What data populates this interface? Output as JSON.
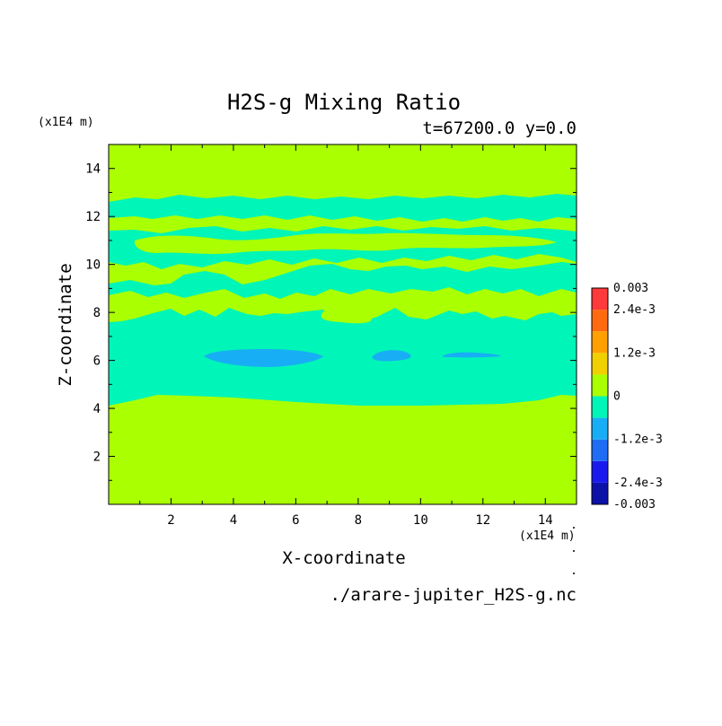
{
  "chart_data": {
    "type": "heatmap",
    "title": "H2S-g Mixing Ratio",
    "subtitle": "t=67200.0 y=0.0",
    "xlabel": "X-coordinate",
    "ylabel": "Z-coordinate",
    "x_unit": "(x1E4 m)",
    "y_unit": "(x1E4 m)",
    "xlim": [
      0,
      15
    ],
    "ylim": [
      0,
      15
    ],
    "x_ticks": [
      2,
      4,
      6,
      8,
      10,
      12,
      14
    ],
    "y_ticks": [
      2,
      4,
      6,
      8,
      10,
      12,
      14
    ],
    "x_tick_labels": [
      "2",
      "4",
      "6",
      "8",
      "10",
      "12",
      "14"
    ],
    "y_tick_labels": [
      "2",
      "4",
      "6",
      "8",
      "10",
      "12",
      "14"
    ],
    "colorbar": {
      "levels": [
        -0.003,
        -0.0024,
        -0.0018,
        -0.0012,
        -0.0006,
        0,
        0.0006,
        0.0012,
        0.0018,
        0.0024,
        0.003
      ],
      "colors": [
        "#0c12a8",
        "#1a1aee",
        "#1f6df5",
        "#18aef5",
        "#00f5b8",
        "#aaff00",
        "#f0d000",
        "#ffa000",
        "#ff6a10",
        "#ff3a3a"
      ],
      "labels": [
        {
          "value": 0.003,
          "text": "0.003"
        },
        {
          "value": 0.0024,
          "text": "2.4e-3"
        },
        {
          "value": 0.0012,
          "text": "1.2e-3"
        },
        {
          "value": 0,
          "text": "0"
        },
        {
          "value": -0.0012,
          "text": "-1.2e-3"
        },
        {
          "value": -0.0024,
          "text": "-2.4e-3"
        },
        {
          "value": -0.003,
          "text": "-0.003"
        }
      ]
    },
    "regions": {
      "background_level": "0 to 6e-4",
      "cyan_level": "-6e-4 to 0",
      "blue_level": "-1.2e-3 to -6e-4"
    },
    "cyan_band_z": [
      4.3,
      7.6
    ],
    "upper_cyan_layers": [
      {
        "z": [
          8.8,
          9.8
        ],
        "note": "wavy layer"
      },
      {
        "z": [
          10.3,
          11.7
        ],
        "note": "wavy layer"
      },
      {
        "z": [
          12.0,
          12.8
        ],
        "note": "top layer"
      }
    ],
    "blue_blobs": [
      {
        "x": [
          3.1,
          6.9
        ],
        "z": [
          5.8,
          6.5
        ]
      },
      {
        "x": [
          8.7,
          9.8
        ],
        "z": [
          6.0,
          6.4
        ]
      },
      {
        "x": [
          10.7,
          12.1
        ],
        "z": [
          6.15,
          6.4
        ]
      }
    ]
  },
  "footer": {
    "filename": "./arare-jupiter_H2S-g.nc"
  }
}
